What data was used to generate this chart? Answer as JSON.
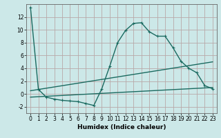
{
  "background_color": "#cce8e8",
  "grid_color": "#b8a8a8",
  "line_color": "#1a6a60",
  "xlabel": "Humidex (Indice chaleur)",
  "xlim": [
    -0.5,
    23.5
  ],
  "ylim": [
    -3.0,
    14.0
  ],
  "yticks": [
    -2,
    0,
    2,
    4,
    6,
    8,
    10,
    12
  ],
  "xticks": [
    0,
    1,
    2,
    3,
    4,
    5,
    6,
    7,
    8,
    9,
    10,
    11,
    12,
    13,
    14,
    15,
    16,
    17,
    18,
    19,
    20,
    21,
    22,
    23
  ],
  "series1_x": [
    0,
    1,
    2,
    3,
    4,
    5,
    6,
    7,
    8,
    9,
    10,
    11,
    12,
    13,
    14,
    15,
    16,
    17,
    18,
    19,
    20,
    21,
    22,
    23
  ],
  "series1_y": [
    13.5,
    0.7,
    -0.5,
    -0.8,
    -1.0,
    -1.1,
    -1.2,
    -1.5,
    -1.8,
    0.8,
    4.3,
    8.0,
    9.9,
    11.0,
    11.1,
    9.7,
    9.0,
    9.0,
    7.2,
    5.1,
    4.0,
    3.3,
    1.3,
    0.8
  ],
  "series2_x": [
    0,
    23
  ],
  "series2_y": [
    0.5,
    5.0
  ],
  "series3_x": [
    0,
    23
  ],
  "series3_y": [
    -0.5,
    1.0
  ],
  "xlabel_fontsize": 6.5,
  "tick_fontsize": 5.5
}
